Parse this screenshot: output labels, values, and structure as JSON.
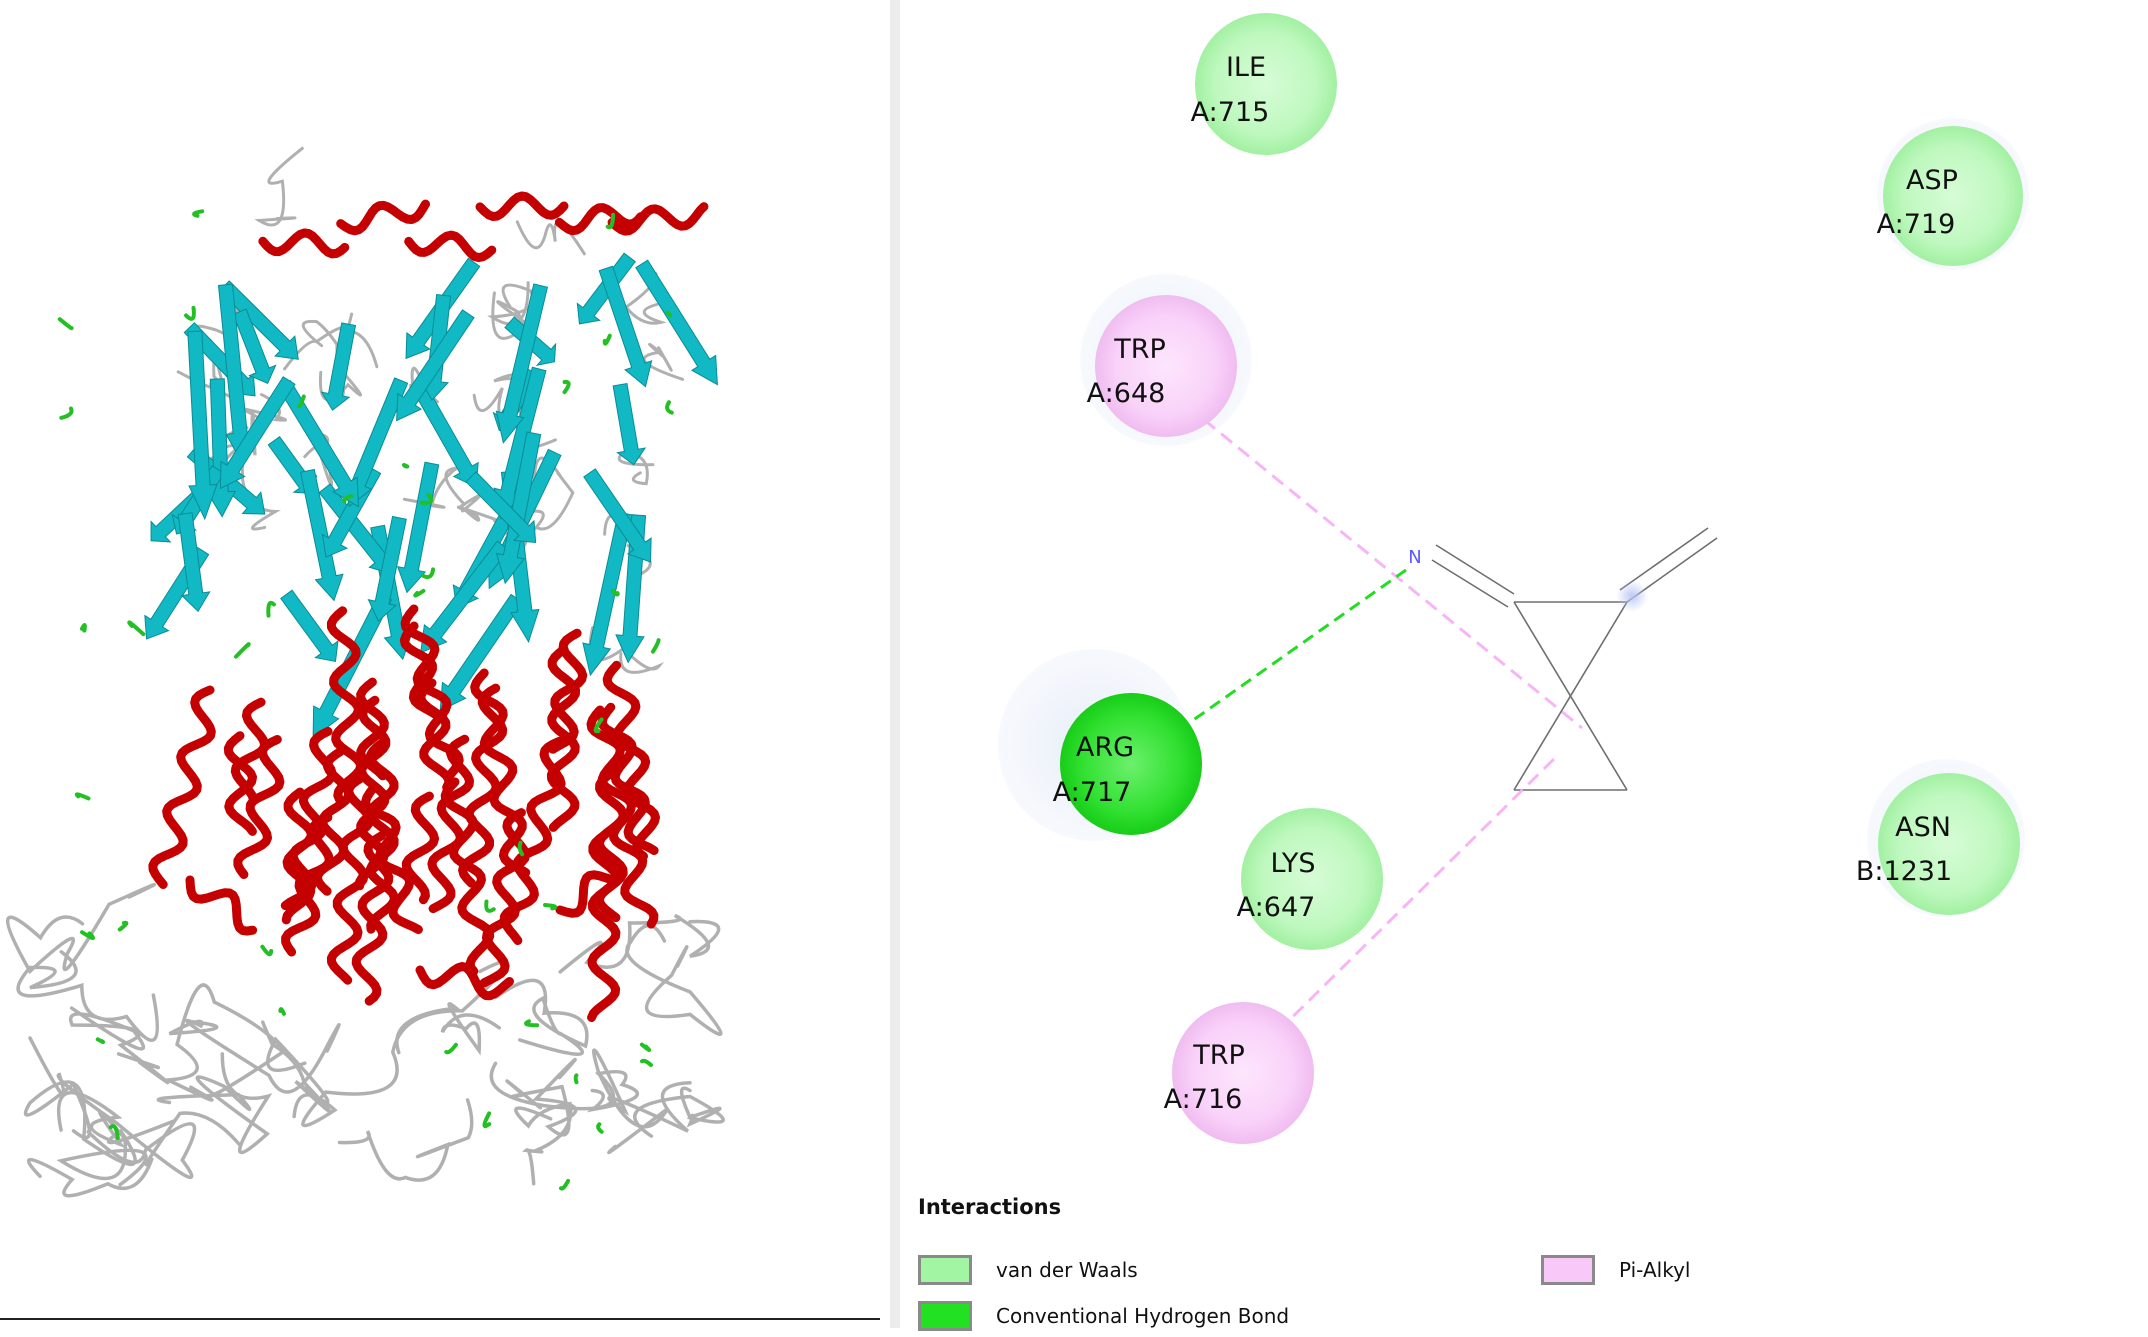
{
  "colors": {
    "van_der_waals": "#a2f5a2",
    "conventional_hydrogen_bond": "#22e022",
    "pi_alkyl": "#f8c8f8",
    "helix": "#c40000",
    "sheet": "#10b9c4",
    "coil": "#b0b0b0",
    "turn": "#22c022",
    "ligand_bond": "#6e6e6e",
    "nitrogen": "#5a5aff"
  },
  "protein_view": {
    "style": "ribbon cartoon",
    "secondary_structure": [
      "helix",
      "sheet",
      "coil",
      "turn"
    ]
  },
  "ligand": {
    "atom_labels": [
      {
        "symbol": "N"
      }
    ]
  },
  "residues": [
    {
      "name": "ILE",
      "id": "A:715",
      "interaction": "van_der_waals"
    },
    {
      "name": "ASP",
      "id": "A:719",
      "interaction": "van_der_waals"
    },
    {
      "name": "TRP",
      "id": "A:648",
      "interaction": "pi_alkyl"
    },
    {
      "name": "ARG",
      "id": "A:717",
      "interaction": "conventional_hydrogen_bond"
    },
    {
      "name": "LYS",
      "id": "A:647",
      "interaction": "van_der_waals"
    },
    {
      "name": "ASN",
      "id": "B:1231",
      "interaction": "van_der_waals"
    },
    {
      "name": "TRP",
      "id": "A:716",
      "interaction": "pi_alkyl"
    }
  ],
  "legend": {
    "title": "Interactions",
    "items": [
      {
        "key": "van_der_waals",
        "label": "van der Waals"
      },
      {
        "key": "conventional_hydrogen_bond",
        "label": "Conventional Hydrogen Bond"
      },
      {
        "key": "pi_alkyl",
        "label": "Pi-Alkyl"
      }
    ]
  }
}
